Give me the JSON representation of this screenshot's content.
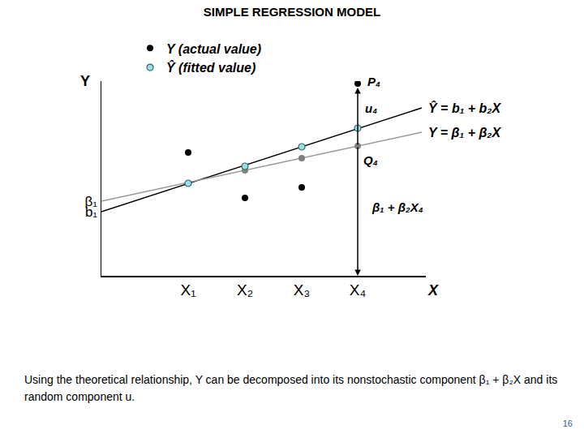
{
  "chart_data": {
    "type": "scatter",
    "title": "SIMPLE REGRESSION MODEL",
    "x_label": "X",
    "y_label": "Y",
    "xlim": [
      0,
      40
    ],
    "ylim": [
      0,
      24
    ],
    "xticks": [
      {
        "value": 10.7,
        "label": "X₁"
      },
      {
        "value": 17.7,
        "label": "X₂"
      },
      {
        "value": 24.7,
        "label": "X₃"
      },
      {
        "value": 31.6,
        "label": "X₄"
      }
    ],
    "yticks": [
      {
        "value": 9.2,
        "label": "β₁"
      },
      {
        "value": 7.9,
        "label": "b₁"
      }
    ],
    "grid": false,
    "legend": "upper left",
    "series": [
      {
        "name": "Ŷ = b₁ + b₂X",
        "type": "line",
        "color": "#000000",
        "x": [
          0,
          39.5
        ],
        "values": [
          7.9,
          20.7
        ]
      },
      {
        "name": "Y = β₁ + β₂X",
        "type": "line",
        "color": "#999999",
        "x": [
          0,
          39.5
        ],
        "values": [
          9.2,
          17.7
        ]
      },
      {
        "type": "scatter",
        "marker": "filled",
        "color": "#808080",
        "x": [
          17.7,
          24.7,
          31.6
        ],
        "values": [
          13.0,
          14.5,
          16.0
        ]
      },
      {
        "name": "Y (actual value)",
        "type": "scatter",
        "marker": "filled",
        "color": "#000000",
        "x": [
          10.7,
          17.7,
          24.7,
          31.6
        ],
        "values": [
          15.2,
          9.6,
          10.9,
          23.7
        ]
      },
      {
        "name": "Ŷ (fitted value)",
        "type": "scatter",
        "marker": "outlined",
        "color": "#9fdce3",
        "x": [
          10.7,
          17.7,
          24.7,
          31.6
        ],
        "values": [
          11.4,
          13.5,
          15.9,
          18.2
        ]
      }
    ],
    "annotations": [
      {
        "text": "P₄",
        "x": 33.6,
        "y": 24.0
      },
      {
        "text": "u₄",
        "x": 33.2,
        "y": 20.7
      },
      {
        "text": "Q₄",
        "x": 33.2,
        "y": 14.3
      },
      {
        "text": "β₁ + β₂X₄",
        "x": 36.5,
        "y": 8.5
      }
    ],
    "caption": "Using the theoretical relationship, Y can be decomposed into its nonstochastic component β₁ + β₂X and its random component u.",
    "page": 16
  }
}
